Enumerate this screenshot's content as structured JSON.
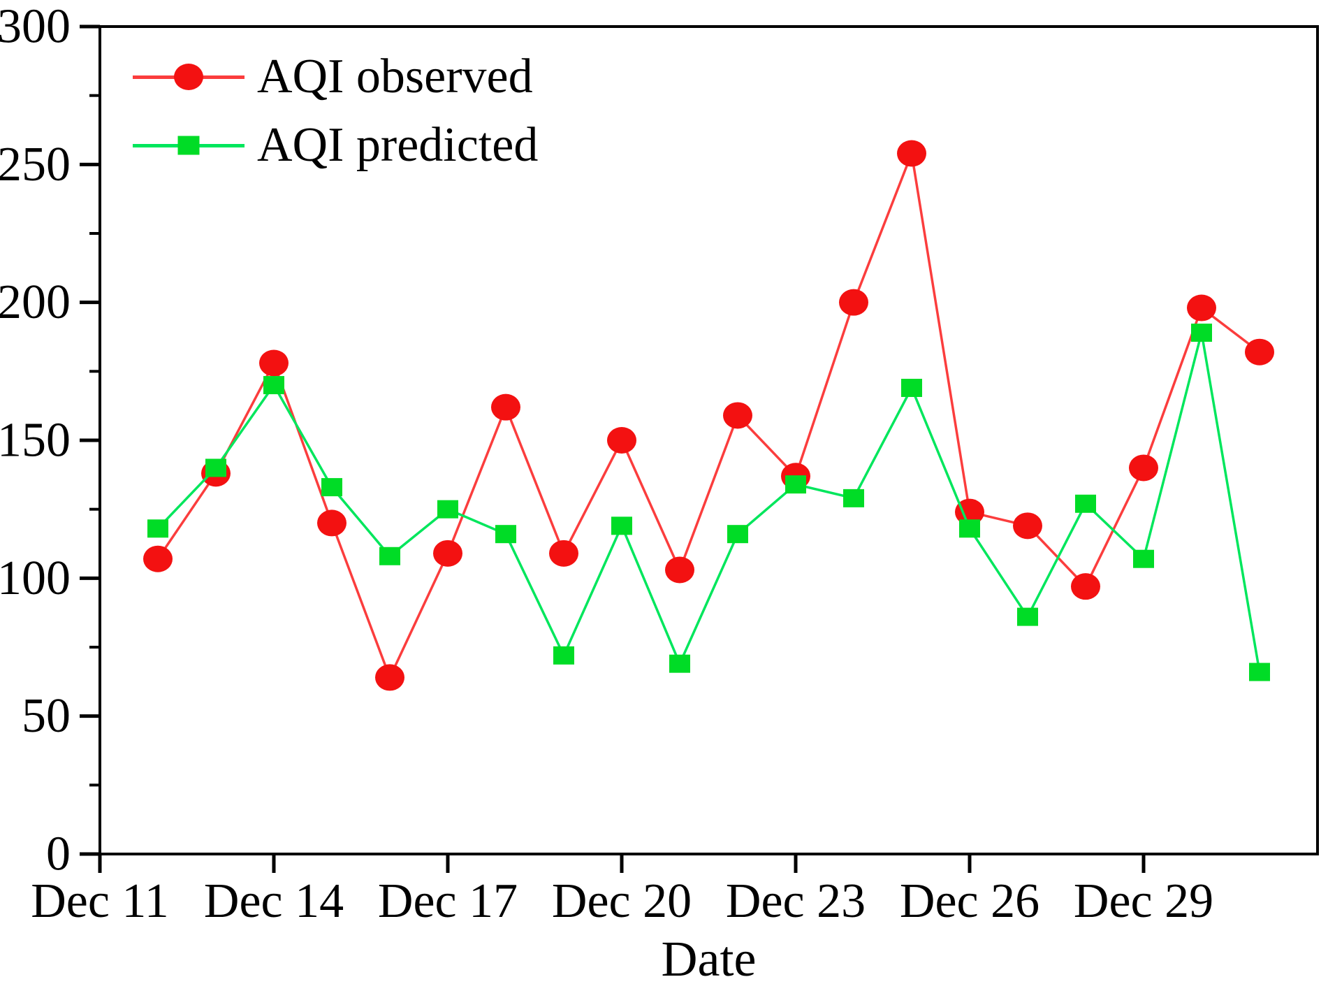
{
  "figure": {
    "background_color": "#ffffff",
    "text_color": "#000000"
  },
  "chart_data": {
    "type": "line",
    "title": "",
    "xlabel": "Date",
    "ylabel": "",
    "grid": "off",
    "legend_position": "top-left-inside",
    "x_categories": [
      "Dec 12",
      "Dec 13",
      "Dec 14",
      "Dec 15",
      "Dec 16",
      "Dec 17",
      "Dec 18",
      "Dec 19",
      "Dec 20",
      "Dec 21",
      "Dec 22",
      "Dec 23",
      "Dec 24",
      "Dec 25",
      "Dec 26",
      "Dec 27",
      "Dec 28",
      "Dec 29",
      "Dec 30",
      "Dec 31"
    ],
    "x_axis": {
      "domain_days": 21,
      "tick_day_offsets": [
        0,
        3,
        6,
        9,
        12,
        15,
        18
      ],
      "tick_labels": [
        "Dec 11",
        "Dec 14",
        "Dec 17",
        "Dec 20",
        "Dec 23",
        "Dec 26",
        "Dec 29"
      ]
    },
    "y_axis": {
      "min": 0,
      "max": 300,
      "major_ticks": [
        0,
        50,
        100,
        150,
        200,
        250,
        300
      ],
      "minor_step": 25
    },
    "series": [
      {
        "name": "AQI observed",
        "marker": "circle",
        "line_color": "#fb3d3d",
        "marker_color": "#f31111",
        "day_offsets": [
          1,
          2,
          3,
          4,
          5,
          6,
          7,
          8,
          9,
          10,
          11,
          12,
          13,
          14,
          15,
          16,
          17,
          18,
          19,
          20
        ],
        "values": [
          107,
          138,
          178,
          120,
          64,
          109,
          162,
          109,
          150,
          103,
          159,
          137,
          200,
          254,
          124,
          119,
          97,
          140,
          198,
          182
        ]
      },
      {
        "name": "AQI predicted",
        "marker": "square",
        "line_color": "#00e65c",
        "marker_color": "#00dc26",
        "day_offsets": [
          1,
          2,
          3,
          4,
          5,
          6,
          7,
          8,
          9,
          10,
          11,
          12,
          13,
          14,
          15,
          16,
          17,
          18,
          19,
          20
        ],
        "values": [
          118,
          140,
          170,
          133,
          108,
          125,
          116,
          72,
          119,
          69,
          116,
          134,
          129,
          169,
          118,
          86,
          127,
          107,
          189,
          66
        ]
      }
    ]
  }
}
